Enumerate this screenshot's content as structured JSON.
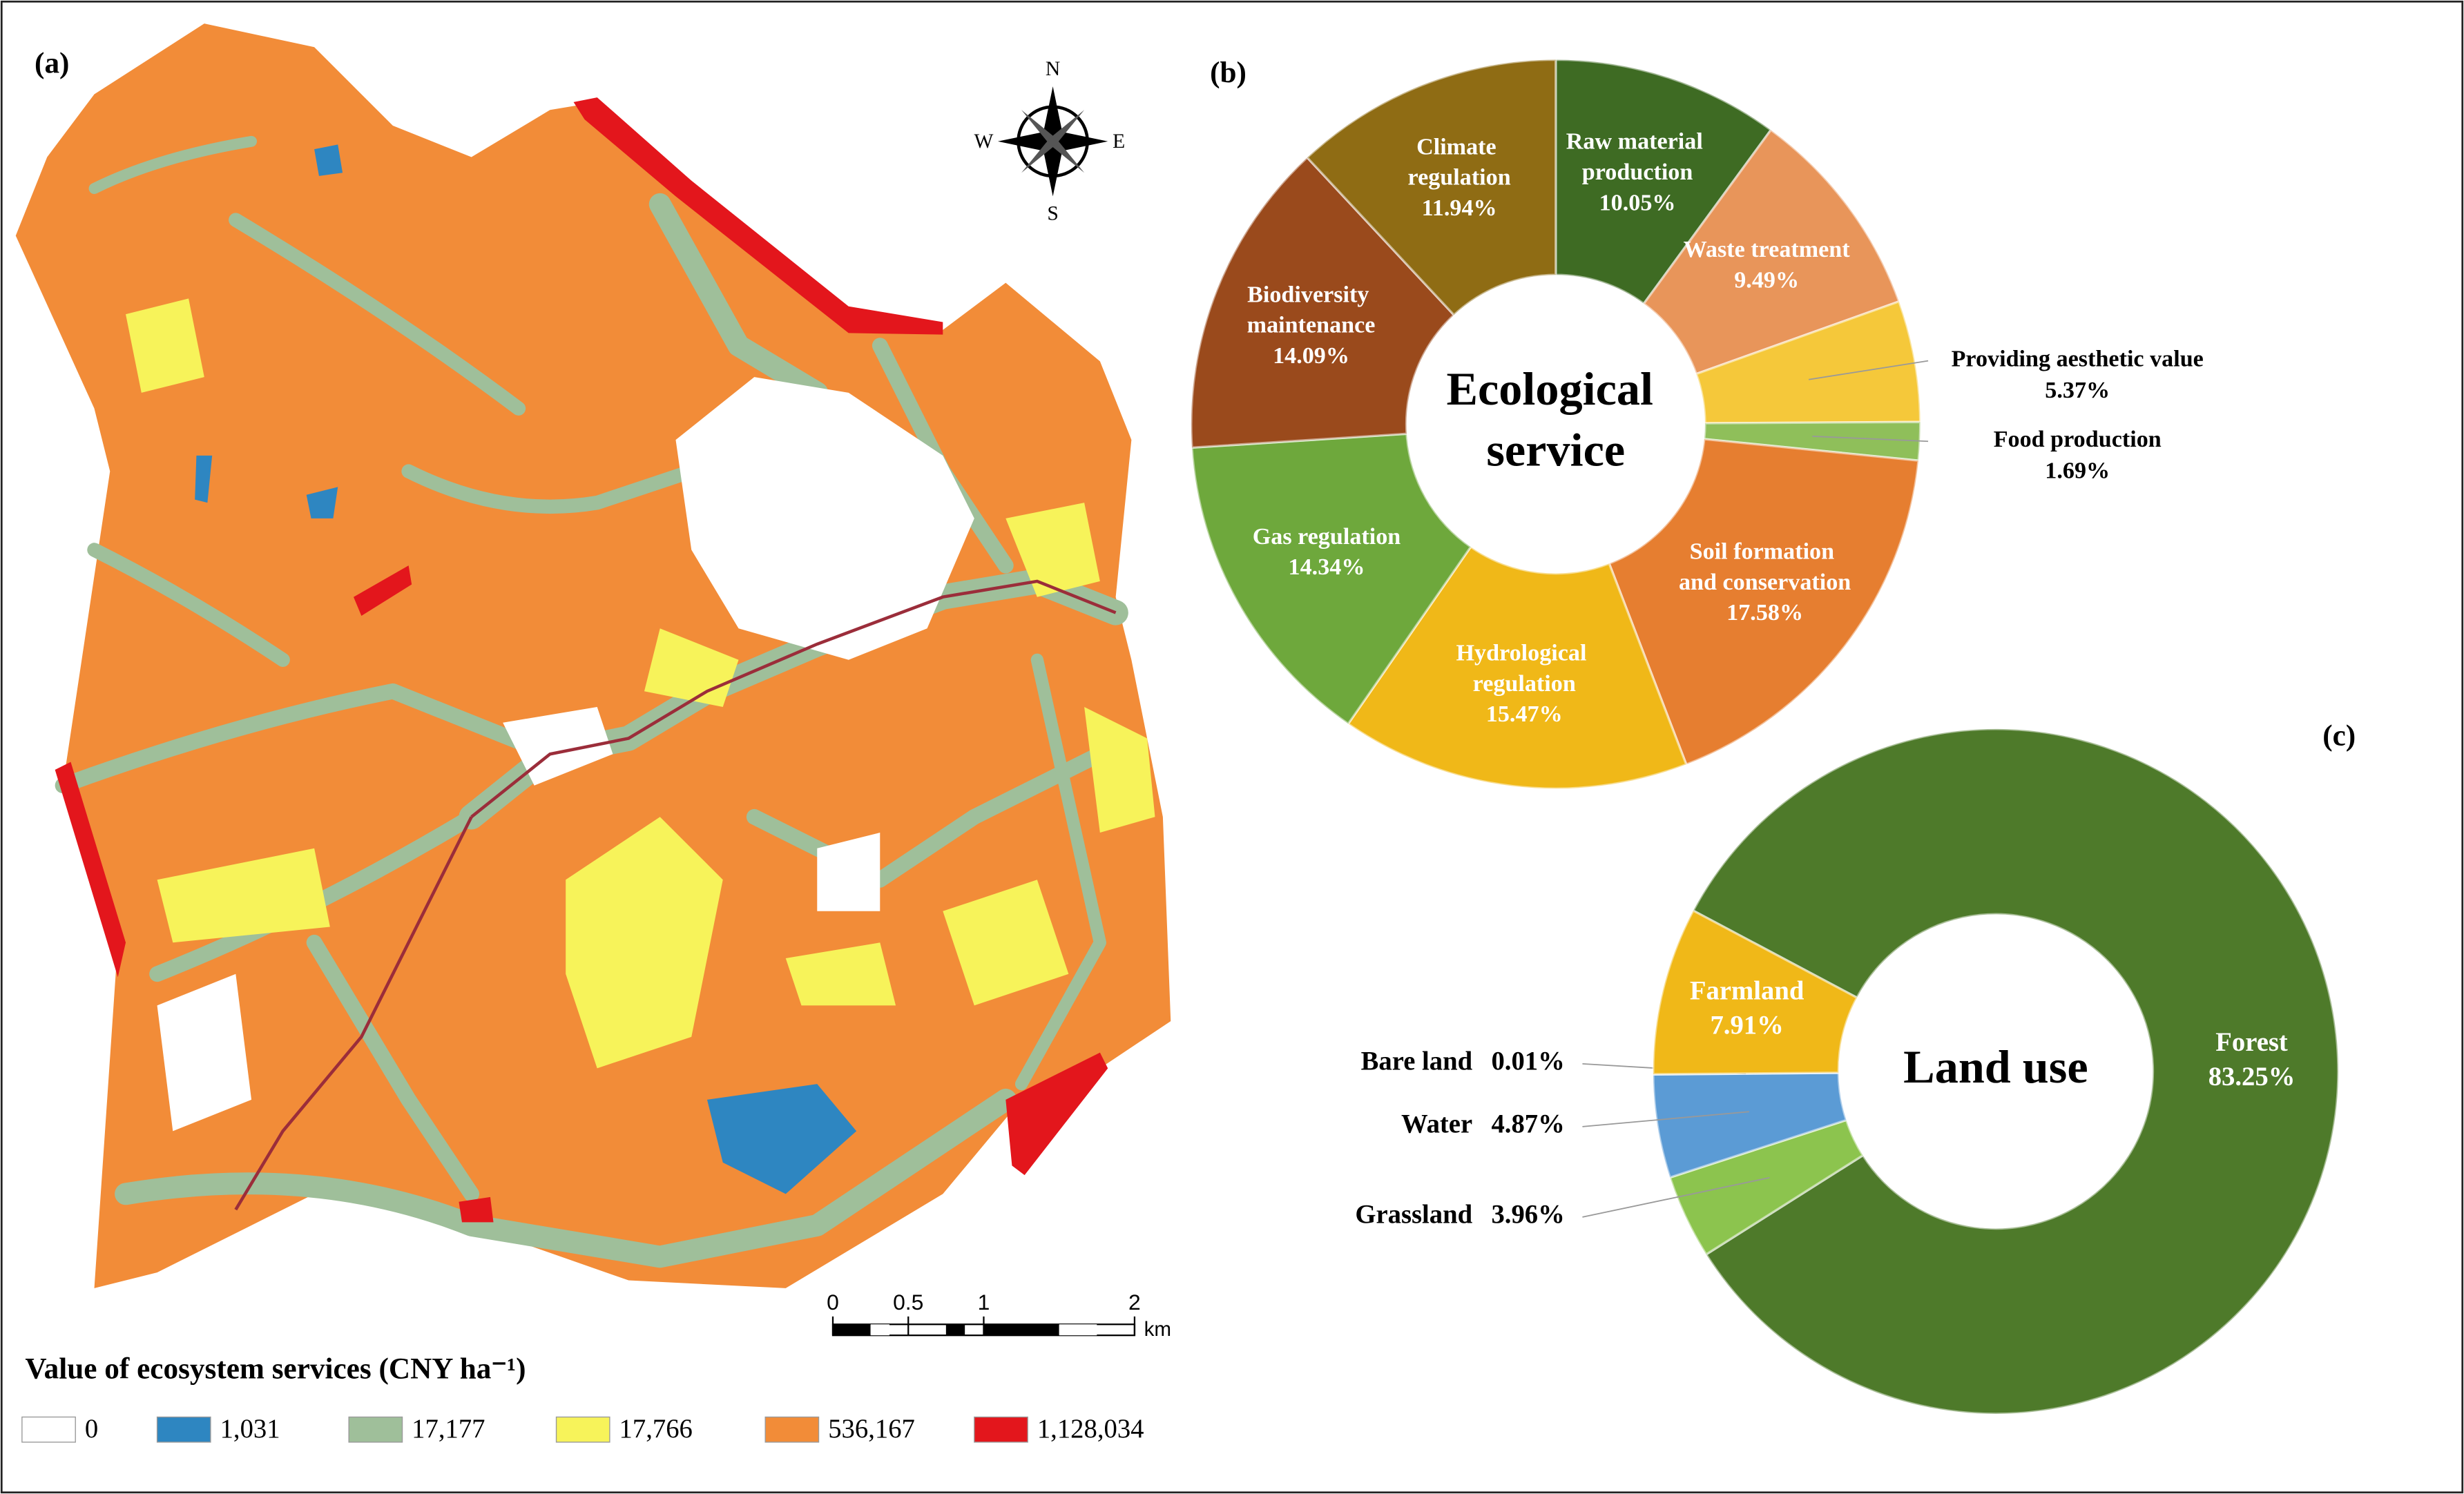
{
  "map": {
    "panel_label": "(a)",
    "legend_title": "Value of ecosystem services (CNY ha⁻¹)",
    "legend": [
      {
        "label": "0",
        "color": "#ffffff"
      },
      {
        "label": "1,031",
        "color": "#2e86c1"
      },
      {
        "label": "17,177",
        "color": "#9fbf9a"
      },
      {
        "label": "17,766",
        "color": "#f7f35a"
      },
      {
        "label": "536,167",
        "color": "#f28c38"
      },
      {
        "label": "1,128,034",
        "color": "#e3161c"
      }
    ],
    "compass": {
      "n": "N",
      "s": "S",
      "e": "E",
      "w": "W"
    },
    "scale_bar": {
      "ticks": [
        0,
        0.5,
        1,
        2
      ],
      "unit": "km"
    }
  },
  "chart_data": [
    {
      "type": "pie",
      "panel_label": "(b)",
      "title": "Ecological service",
      "categories": [
        "Raw material production",
        "Waste treatment",
        "Providing aesthetic value",
        "Food production",
        "Soil formation and conservation",
        "Hydrological regulation",
        "Gas regulation",
        "Biodiversity maintenance",
        "Climate regulation"
      ],
      "values": [
        10.05,
        9.49,
        5.37,
        1.69,
        17.58,
        15.47,
        14.34,
        14.09,
        11.94
      ],
      "value_labels": [
        "10.05%",
        "9.49%",
        "5.37%",
        "1.69%",
        "17.58%",
        "15.47%",
        "14.34%",
        "14.09%",
        "11.94%"
      ],
      "colors": [
        "#3e6b23",
        "#e8955a",
        "#f5c83a",
        "#8fbf5a",
        "#e67e30",
        "#f0b818",
        "#6ea83c",
        "#9a4a1c",
        "#8f6c14"
      ]
    },
    {
      "type": "pie",
      "panel_label": "(c)",
      "title": "Land use",
      "categories": [
        "Forest",
        "Grassland",
        "Water",
        "Bare land",
        "Farmland"
      ],
      "values": [
        83.25,
        3.96,
        4.87,
        0.01,
        7.91
      ],
      "value_labels": [
        "83.25%",
        "3.96%",
        "4.87%",
        "0.01%",
        "7.91%"
      ],
      "colors": [
        "#4e7a2a",
        "#8cc44e",
        "#5b9bd5",
        "#bfbfbf",
        "#f0b818"
      ]
    }
  ]
}
